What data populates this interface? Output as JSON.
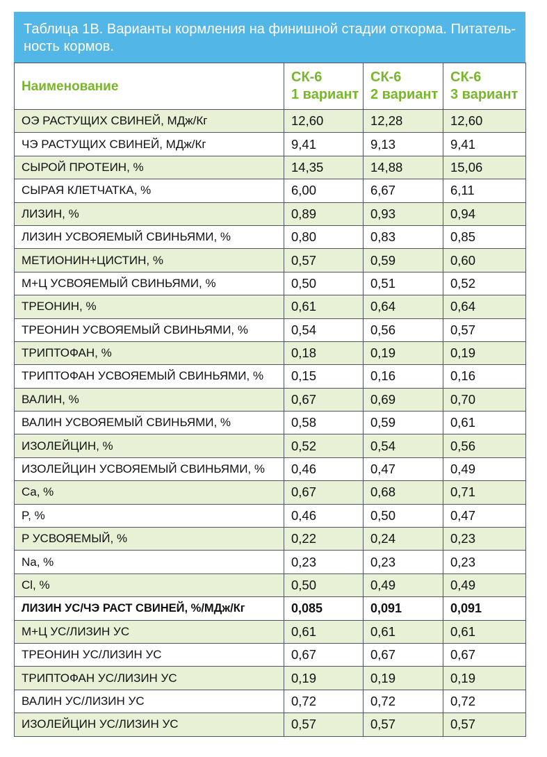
{
  "title": {
    "line1": "Таблица 1В. Варианты кормления на финишной стадии откорма. Питатель-",
    "line2": "ность кормов."
  },
  "columns": {
    "name": "Наименование",
    "v1": {
      "line1": "СК-6",
      "line2": "1 вариант"
    },
    "v2": {
      "line1": "СК-6",
      "line2": "2 вариант"
    },
    "v3": {
      "line1": "СК-6",
      "line2": "3 вариант"
    }
  },
  "rows": [
    {
      "name": "ОЭ РАСТУЩИХ СВИНЕЙ, МДж/Кг",
      "v1": "12,60",
      "v2": "12,28",
      "v3": "12,60"
    },
    {
      "name": "ЧЭ РАСТУЩИХ СВИНЕЙ, МДж/Кг",
      "v1": "9,41",
      "v2": "9,13",
      "v3": "9,41"
    },
    {
      "name": "СЫРОЙ ПРОТЕИН, %",
      "v1": "14,35",
      "v2": "14,88",
      "v3": "15,06"
    },
    {
      "name": "СЫРАЯ КЛЕТЧАТКА, %",
      "v1": "6,00",
      "v2": "6,67",
      "v3": "6,11"
    },
    {
      "name": "ЛИЗИН, %",
      "v1": "0,89",
      "v2": "0,93",
      "v3": "0,94"
    },
    {
      "name": "ЛИЗИН УСВОЯЕМЫЙ СВИНЬЯМИ, %",
      "v1": "0,80",
      "v2": "0,83",
      "v3": "0,85"
    },
    {
      "name": "МЕТИОНИН+ЦИСТИН, %",
      "v1": "0,57",
      "v2": "0,59",
      "v3": "0,60"
    },
    {
      "name": "М+Ц УСВОЯЕМЫЙ СВИНЬЯМИ, %",
      "v1": "0,50",
      "v2": "0,51",
      "v3": "0,52"
    },
    {
      "name": "ТРЕОНИН, %",
      "v1": "0,61",
      "v2": "0,64",
      "v3": "0,64"
    },
    {
      "name": "ТРЕОНИН УСВОЯЕМЫЙ СВИНЬЯМИ, %",
      "v1": "0,54",
      "v2": "0,56",
      "v3": "0,57"
    },
    {
      "name": "ТРИПТОФАН, %",
      "v1": "0,18",
      "v2": "0,19",
      "v3": "0,19"
    },
    {
      "name": "ТРИПТОФАН УСВОЯЕМЫЙ СВИНЬЯМИ, %",
      "v1": "0,15",
      "v2": "0,16",
      "v3": "0,16"
    },
    {
      "name": "ВАЛИН, %",
      "v1": "0,67",
      "v2": "0,69",
      "v3": "0,70"
    },
    {
      "name": "ВАЛИН УСВОЯЕМЫЙ СВИНЬЯМИ, %",
      "v1": "0,58",
      "v2": "0,59",
      "v3": "0,61"
    },
    {
      "name": "ИЗОЛЕЙЦИН, %",
      "v1": "0,52",
      "v2": "0,54",
      "v3": "0,56"
    },
    {
      "name": "ИЗОЛЕЙЦИН УСВОЯЕМЫЙ СВИНЬЯМИ, %",
      "v1": "0,46",
      "v2": "0,47",
      "v3": "0,49"
    },
    {
      "name": "Ca, %",
      "v1": "0,67",
      "v2": "0,68",
      "v3": "0,71"
    },
    {
      "name": "P, %",
      "v1": "0,46",
      "v2": "0,50",
      "v3": "0,47"
    },
    {
      "name": "P УСВОЯЕМЫЙ, %",
      "v1": "0,22",
      "v2": "0,24",
      "v3": "0,23"
    },
    {
      "name": "Na, %",
      "v1": "0,23",
      "v2": "0,23",
      "v3": "0,23"
    },
    {
      "name": "Cl, %",
      "v1": "0,50",
      "v2": "0,49",
      "v3": "0,49"
    },
    {
      "name": "ЛИЗИН УС/ЧЭ РАСТ СВИНЕЙ, %/МДж/Кг",
      "v1": "0,085",
      "v2": "0,091",
      "v3": "0,091"
    },
    {
      "name": "М+Ц УС/ЛИЗИН УС",
      "v1": "0,61",
      "v2": "0,61",
      "v3": "0,61"
    },
    {
      "name": "ТРЕОНИН УС/ЛИЗИН УС",
      "v1": "0,67",
      "v2": "0,67",
      "v3": "0,67"
    },
    {
      "name": "ТРИПТОФАН УС/ЛИЗИН УС",
      "v1": "0,19",
      "v2": "0,19",
      "v3": "0,19"
    },
    {
      "name": "ВАЛИН УС/ЛИЗИН УС",
      "v1": "0,72",
      "v2": "0,72",
      "v3": "0,72"
    },
    {
      "name": "ИЗОЛЕЙЦИН УС/ЛИЗИН УС",
      "v1": "0,57",
      "v2": "0,57",
      "v3": "0,57"
    }
  ],
  "colors": {
    "title_background": "#52b6e6",
    "header_text": "#78b72b",
    "row_shade": "#e8f0d6",
    "border": "#4b5563"
  }
}
